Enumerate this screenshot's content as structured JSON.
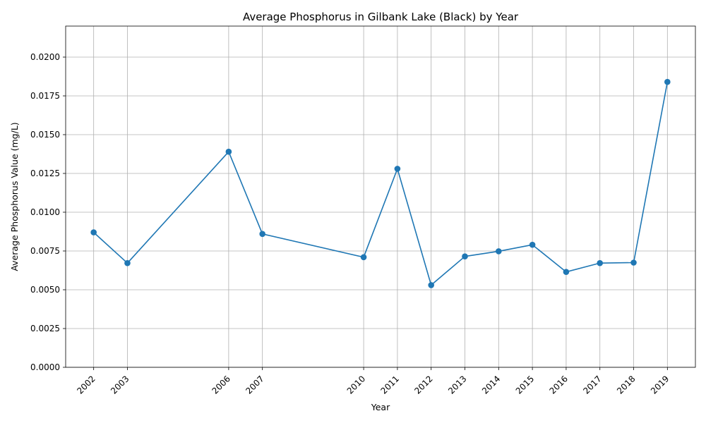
{
  "chart_data": {
    "type": "line",
    "title": "Average Phosphorus in Gilbank Lake (Black) by Year",
    "xlabel": "Year",
    "ylabel": "Average Phosphorus Value (mg/L)",
    "x": [
      2002,
      2003,
      2006,
      2007,
      2010,
      2011,
      2012,
      2013,
      2014,
      2015,
      2016,
      2017,
      2018,
      2019
    ],
    "x_tick_labels": [
      "2002",
      "2003",
      "2006",
      "2007",
      "2010",
      "2011",
      "2012",
      "2013",
      "2014",
      "2015",
      "2016",
      "2017",
      "2018",
      "2019"
    ],
    "series": [
      {
        "values": [
          0.0087,
          0.00672,
          0.0139,
          0.0086,
          0.0071,
          0.0128,
          0.0053,
          0.00715,
          0.00748,
          0.0079,
          0.00615,
          0.00672,
          0.00675,
          0.0184
        ],
        "color": "#1f77b4",
        "marker": "circle"
      }
    ],
    "xlim": [
      2001.17,
      2019.83
    ],
    "ylim": [
      0,
      0.022
    ],
    "y_ticks": [
      0,
      0.0025,
      0.005,
      0.0075,
      0.01,
      0.0125,
      0.015,
      0.0175,
      0.02
    ],
    "y_tick_labels": [
      "0.0000",
      "0.0025",
      "0.0050",
      "0.0075",
      "0.0100",
      "0.0125",
      "0.0150",
      "0.0175",
      "0.0200"
    ],
    "x_tick_rotation": 45,
    "grid": true,
    "grid_color": "#b0b0b0",
    "legend": null
  }
}
